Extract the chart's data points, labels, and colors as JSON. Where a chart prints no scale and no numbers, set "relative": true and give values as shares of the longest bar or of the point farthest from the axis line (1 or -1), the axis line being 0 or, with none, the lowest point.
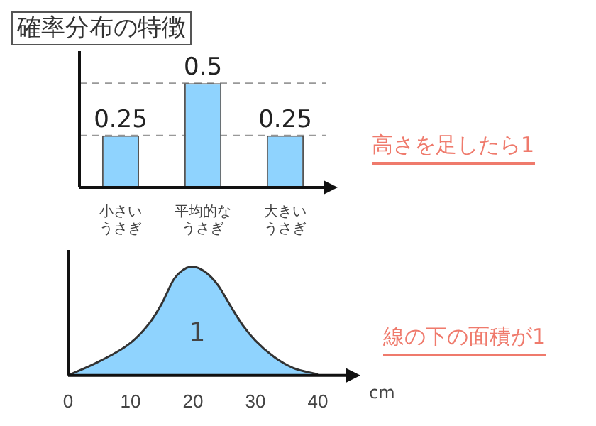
{
  "chart_data": [
    {
      "type": "bar",
      "title": "確率分布の特徴",
      "categories": [
        "小さいうさぎ",
        "平均的なうさぎ",
        "大きいうさぎ"
      ],
      "values": [
        0.25,
        0.5,
        0.25
      ],
      "color": "#8fd3fe",
      "data_labels": true,
      "grid": false,
      "legend": false,
      "ref_lines": [
        {
          "axis": "y",
          "value": 0.25,
          "color": "#999999",
          "line_style": "dashed"
        },
        {
          "axis": "y",
          "value": 0.5,
          "color": "#999999",
          "line_style": "dashed"
        }
      ],
      "annotations": [
        "高さを足したら1"
      ]
    },
    {
      "type": "area",
      "x": [
        0,
        5,
        10,
        13,
        15,
        17,
        19,
        20,
        22,
        24,
        26,
        28,
        30,
        33,
        36,
        40
      ],
      "relative": true,
      "xlabel": "cm",
      "xlim": [
        0,
        45
      ],
      "xticks": [
        0,
        10,
        20,
        30,
        40
      ],
      "grid": false,
      "legend": false,
      "series": [
        {
          "color": "#8fd3fe",
          "values": [
            0,
            0.13,
            0.3,
            0.48,
            0.66,
            0.89,
            0.99,
            1,
            0.95,
            0.83,
            0.64,
            0.46,
            0.32,
            0.17,
            0.07,
            0.01
          ]
        }
      ],
      "annotations": [
        "線の下の面積が1",
        "1"
      ]
    }
  ]
}
